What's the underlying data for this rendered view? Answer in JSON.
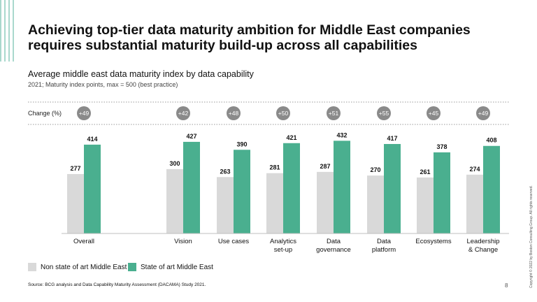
{
  "title": "Achieving top-tier data maturity ambition for Middle East companies requires substantial maturity build-up across all capabilities",
  "subtitle": "Average middle east data maturity index by data capability",
  "subnote": "2021; Maturity index points, max = 500 (best practice)",
  "change_label": "Change (%)",
  "legend": {
    "non_state": "Non state of art Middle East",
    "state": "State of art Middle East"
  },
  "source": "Source: BCG analysis and Data Capability Maturity Assessment (DACAMA) Study 2021.",
  "page_number": "8",
  "copyright": "Copyright © 2022 by Boston Consulting Group. All rights reserved.",
  "colors": {
    "non_state": "#d9d9d9",
    "state": "#4aaf8f",
    "badge": "#8a8a8a"
  },
  "chart_data": {
    "type": "bar",
    "title": "Average middle east data maturity index by data capability",
    "ylabel": "Maturity index points",
    "ylim": [
      0,
      500
    ],
    "categories": [
      "Overall",
      "Vision",
      "Use cases",
      "Analytics\nset-up",
      "Data\ngovernance",
      "Data\nplatform",
      "Ecosystems",
      "Leadership\n& Change"
    ],
    "series": [
      {
        "name": "Non state of art Middle East",
        "values": [
          277,
          300,
          263,
          281,
          287,
          270,
          261,
          274
        ]
      },
      {
        "name": "State of art Middle East",
        "values": [
          414,
          427,
          390,
          421,
          432,
          417,
          378,
          408
        ]
      }
    ],
    "change": [
      "+49",
      "+42",
      "+48",
      "+50",
      "+51",
      "+55",
      "+45",
      "+49"
    ]
  }
}
